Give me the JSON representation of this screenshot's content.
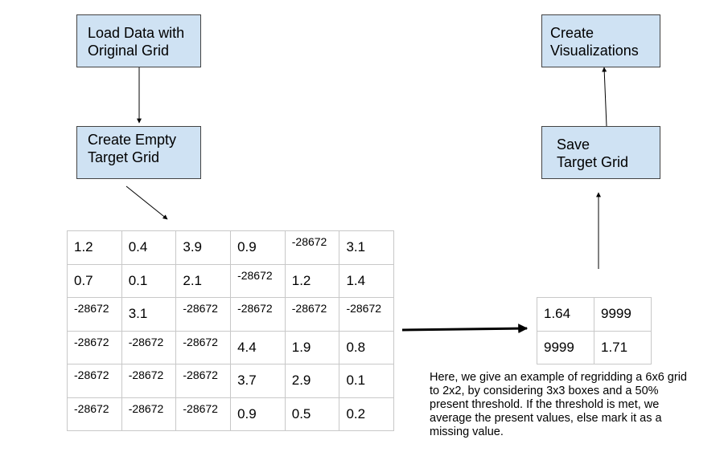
{
  "boxes": {
    "load": "Load Data with\nOriginal Grid",
    "empty": "Create Empty\nTarget Grid",
    "viz": "Create\nVisualizations",
    "save": "Save\nTarget Grid"
  },
  "original_grid": [
    [
      "1.2",
      "0.4",
      "3.9",
      "0.9",
      "-28672",
      "3.1"
    ],
    [
      "0.7",
      "0.1",
      "2.1",
      "-28672",
      "1.2",
      "1.4"
    ],
    [
      "-28672",
      "3.1",
      "-28672",
      "-28672",
      "-28672",
      "-28672"
    ],
    [
      "-28672",
      "-28672",
      "-28672",
      "4.4",
      "1.9",
      "0.8"
    ],
    [
      "-28672",
      "-28672",
      "-28672",
      "3.7",
      "2.9",
      "0.1"
    ],
    [
      "-28672",
      "-28672",
      "-28672",
      "0.9",
      "0.5",
      "0.2"
    ]
  ],
  "target_grid": [
    [
      "1.64",
      "9999"
    ],
    [
      "9999",
      "1.71"
    ]
  ],
  "note": "Here, we give an example of regridding a 6x6 grid to 2x2, by considering 3x3 boxes and a 50% present threshold. If the threshold is met, we average the present values, else mark it as a missing value.",
  "colors": {
    "box_fill": "#cfe2f3",
    "box_border": "#434343",
    "cell_border": "#c8c8c8"
  }
}
